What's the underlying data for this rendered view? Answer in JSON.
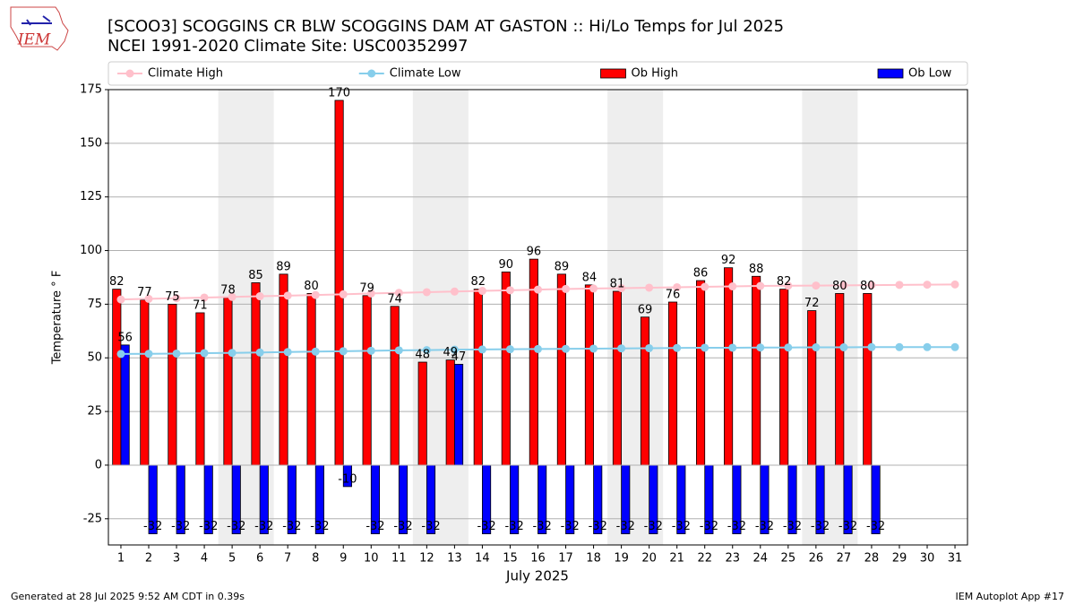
{
  "logo_text": "IEM",
  "footer_left": "Generated at 28 Jul 2025 9:52 AM CDT in 0.39s",
  "footer_right": "IEM Autoplot App #17",
  "chart_data": {
    "type": "bar_line",
    "title": "[SCOO3] SCOGGINS CR BLW SCOGGINS DAM  AT GASTON :: Hi/Lo Temps for Jul 2025",
    "subtitle": "NCEI 1991-2020 Climate Site: USC00352997",
    "x_label": "July 2025",
    "y_label": "Temperature ° F",
    "x": [
      1,
      2,
      3,
      4,
      5,
      6,
      7,
      8,
      9,
      10,
      11,
      12,
      13,
      14,
      15,
      16,
      17,
      18,
      19,
      20,
      21,
      22,
      23,
      24,
      25,
      26,
      27,
      28,
      29,
      30,
      31
    ],
    "xlim": [
      0.55,
      31.45
    ],
    "xticks": [
      1,
      2,
      3,
      4,
      5,
      6,
      7,
      8,
      9,
      10,
      11,
      12,
      13,
      14,
      15,
      16,
      17,
      18,
      19,
      20,
      21,
      22,
      23,
      24,
      25,
      26,
      27,
      28,
      29,
      30,
      31
    ],
    "ylim": [
      -37.2,
      175
    ],
    "yticks": [
      -25,
      0,
      25,
      50,
      75,
      100,
      125,
      150,
      175
    ],
    "grid": true,
    "legend": "above",
    "shaded_spans": [
      [
        5,
        6
      ],
      [
        12,
        13
      ],
      [
        19,
        20
      ],
      [
        26,
        27
      ]
    ],
    "series": [
      {
        "name": "Climate High",
        "type": "line",
        "color": "#ffc0cb",
        "values": [
          77.2,
          77.5,
          77.8,
          78.1,
          78.4,
          78.7,
          79,
          79.3,
          79.6,
          80,
          80.3,
          80.6,
          80.9,
          81.2,
          81.5,
          81.8,
          82.1,
          82.3,
          82.5,
          82.7,
          82.9,
          83.1,
          83.3,
          83.5,
          83.6,
          83.7,
          83.8,
          83.9,
          84,
          84.1,
          84.2
        ]
      },
      {
        "name": "Climate Low",
        "type": "line",
        "color": "#87ceeb",
        "values": [
          51.8,
          51.9,
          52,
          52.2,
          52.3,
          52.5,
          52.7,
          52.9,
          53.1,
          53.3,
          53.5,
          53.6,
          53.8,
          53.9,
          54,
          54.1,
          54.2,
          54.3,
          54.4,
          54.5,
          54.6,
          54.7,
          54.7,
          54.8,
          54.8,
          54.9,
          54.9,
          55,
          55,
          55,
          55
        ]
      },
      {
        "name": "Ob High",
        "type": "bar",
        "color": "#ff0000",
        "values": [
          82,
          77,
          75,
          71,
          78,
          85,
          89,
          80,
          170,
          79,
          74,
          48,
          49,
          82,
          90,
          96,
          89,
          84,
          81,
          69,
          76,
          86,
          92,
          88,
          82,
          72,
          80,
          80,
          null,
          null,
          null
        ]
      },
      {
        "name": "Ob Low",
        "type": "bar",
        "color": "#0000ff",
        "values": [
          56,
          -32,
          -32,
          -32,
          -32,
          -32,
          -32,
          -32,
          -10,
          -32,
          -32,
          -32,
          47,
          -32,
          -32,
          -32,
          -32,
          -32,
          -32,
          -32,
          -32,
          -32,
          -32,
          -32,
          -32,
          -32,
          -32,
          -32,
          null,
          null,
          null
        ]
      }
    ]
  }
}
